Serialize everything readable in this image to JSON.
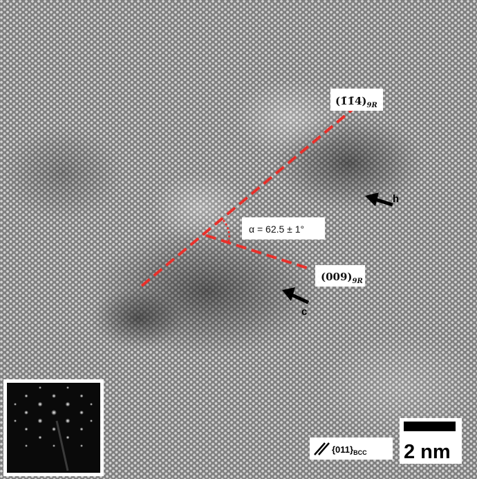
{
  "image": {
    "description": "High-resolution TEM lattice image with annotated planes, angle, arrows, inset diffraction pattern and scale bar"
  },
  "labels": {
    "plane_upper": "(1̄1̄4)",
    "plane_upper_sub": "9R",
    "plane_lower": "(009)",
    "plane_lower_sub": "9R",
    "angle": "α = 62.5 ± 1°",
    "arrow_h": "h",
    "arrow_c": "c"
  },
  "legend": {
    "planes": "{011}",
    "planes_sub": "BCC"
  },
  "scale_bar": {
    "label": "2 nm"
  },
  "colors": {
    "dash_line": "#e8302a",
    "label_bg": "#ffffff",
    "arrow": "#000000"
  }
}
